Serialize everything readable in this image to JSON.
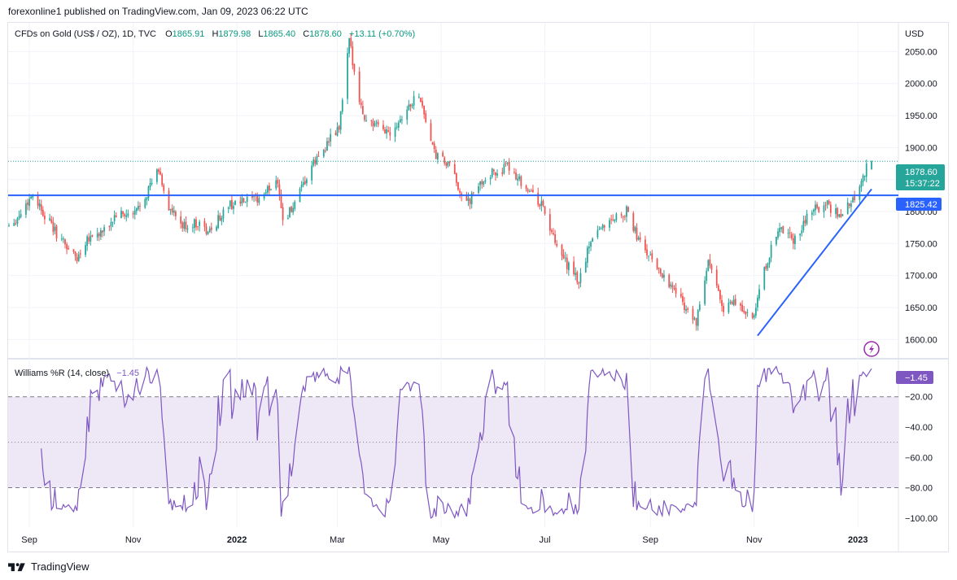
{
  "header": {
    "publish_line": "forexonline1 published on TradingView.com, Jan 09, 2023 06:22 UTC"
  },
  "legend": {
    "symbol": "CFDs on Gold (US$ / OZ), 1D, TVC",
    "o_label": "O",
    "o_value": "1865.91",
    "h_label": "H",
    "h_value": "1879.98",
    "l_label": "L",
    "l_value": "1865.40",
    "c_label": "C",
    "c_value": "1878.60",
    "change": "+13.11 (+0.70%)"
  },
  "price_axis": {
    "currency": "USD",
    "last_price": "1878.60",
    "countdown": "15:37:22",
    "support_label": "1825.42"
  },
  "indicator": {
    "name": "Williams %R (14, close)",
    "value": "−1.45",
    "badge": "−1.45"
  },
  "footer": {
    "brand": "TradingView"
  },
  "colors": {
    "up": "#26a69a",
    "down": "#ef5350",
    "line": "#2962ff",
    "wr": "#7e57c2",
    "band": "#ede7f6",
    "grid": "#f0f3fa",
    "text": "#131722"
  },
  "chart_data": [
    {
      "type": "candlestick",
      "title": "CFDs on Gold (US$ / OZ), 1D, TVC",
      "x_tick_labels": [
        "Sep",
        "Nov",
        "2022",
        "Mar",
        "May",
        "Jul",
        "Sep",
        "Nov",
        "2023"
      ],
      "y_tick_labels": [
        "2050.00",
        "2000.00",
        "1950.00",
        "1900.00",
        "1850.00",
        "1800.00",
        "1750.00",
        "1700.00",
        "1650.00",
        "1600.00"
      ],
      "y_ticks": [
        2050,
        2000,
        1950,
        1900,
        1850,
        1800,
        1750,
        1700,
        1650,
        1600
      ],
      "ylim": [
        1570,
        2095
      ],
      "close_path": [
        [
          "2021-08-20",
          1780
        ],
        [
          "2021-08-25",
          1790
        ],
        [
          "2021-09-03",
          1828
        ],
        [
          "2021-09-10",
          1795
        ],
        [
          "2021-09-17",
          1765
        ],
        [
          "2021-09-29",
          1726
        ],
        [
          "2021-10-05",
          1760
        ],
        [
          "2021-10-15",
          1768
        ],
        [
          "2021-10-22",
          1795
        ],
        [
          "2021-11-01",
          1793
        ],
        [
          "2021-11-08",
          1825
        ],
        [
          "2021-11-16",
          1865
        ],
        [
          "2021-11-22",
          1805
        ],
        [
          "2021-11-30",
          1776
        ],
        [
          "2021-12-10",
          1783
        ],
        [
          "2021-12-15",
          1765
        ],
        [
          "2021-12-27",
          1810
        ],
        [
          "2022-01-05",
          1815
        ],
        [
          "2022-01-14",
          1820
        ],
        [
          "2022-01-25",
          1850
        ],
        [
          "2022-01-28",
          1786
        ],
        [
          "2022-02-04",
          1810
        ],
        [
          "2022-02-14",
          1870
        ],
        [
          "2022-02-24",
          1910
        ],
        [
          "2022-03-02",
          1930
        ],
        [
          "2022-03-08",
          2065
        ],
        [
          "2022-03-16",
          1950
        ],
        [
          "2022-03-25",
          1930
        ],
        [
          "2022-04-01",
          1925
        ],
        [
          "2022-04-18",
          1985
        ],
        [
          "2022-04-27",
          1890
        ],
        [
          "2022-05-06",
          1870
        ],
        [
          "2022-05-16",
          1810
        ],
        [
          "2022-05-27",
          1855
        ],
        [
          "2022-06-10",
          1870
        ],
        [
          "2022-06-20",
          1838
        ],
        [
          "2022-06-30",
          1807
        ],
        [
          "2022-07-08",
          1740
        ],
        [
          "2022-07-21",
          1690
        ],
        [
          "2022-07-29",
          1765
        ],
        [
          "2022-08-10",
          1790
        ],
        [
          "2022-08-18",
          1800
        ],
        [
          "2022-08-26",
          1750
        ],
        [
          "2022-09-06",
          1710
        ],
        [
          "2022-09-16",
          1675
        ],
        [
          "2022-09-28",
          1625
        ],
        [
          "2022-10-05",
          1720
        ],
        [
          "2022-10-14",
          1650
        ],
        [
          "2022-10-21",
          1657
        ],
        [
          "2022-11-01",
          1630
        ],
        [
          "2022-11-04",
          1680
        ],
        [
          "2022-11-15",
          1775
        ],
        [
          "2022-11-25",
          1755
        ],
        [
          "2022-12-05",
          1805
        ],
        [
          "2022-12-14",
          1810
        ],
        [
          "2022-12-22",
          1792
        ],
        [
          "2022-12-30",
          1824
        ],
        [
          "2023-01-06",
          1868
        ],
        [
          "2023-01-09",
          1878.6
        ]
      ],
      "last_bar": {
        "open": 1865.91,
        "high": 1879.98,
        "low": 1865.4,
        "close": 1878.6
      },
      "horizontal_line": 1825.42,
      "trendline": {
        "from": [
          "2022-11-03",
          1606
        ],
        "to": [
          "2023-01-09",
          1835
        ]
      }
    },
    {
      "type": "line",
      "title": "Williams %R (14, close)",
      "y_tick_labels": [
        "−20.00",
        "−40.00",
        "−60.00",
        "−80.00",
        "−100.00"
      ],
      "y_ticks": [
        -20,
        -40,
        -60,
        -80,
        -100
      ],
      "ylim": [
        -106,
        4
      ],
      "bands": {
        "upper": -20,
        "middle": -50,
        "lower": -80
      },
      "last_value": -1.45
    }
  ]
}
